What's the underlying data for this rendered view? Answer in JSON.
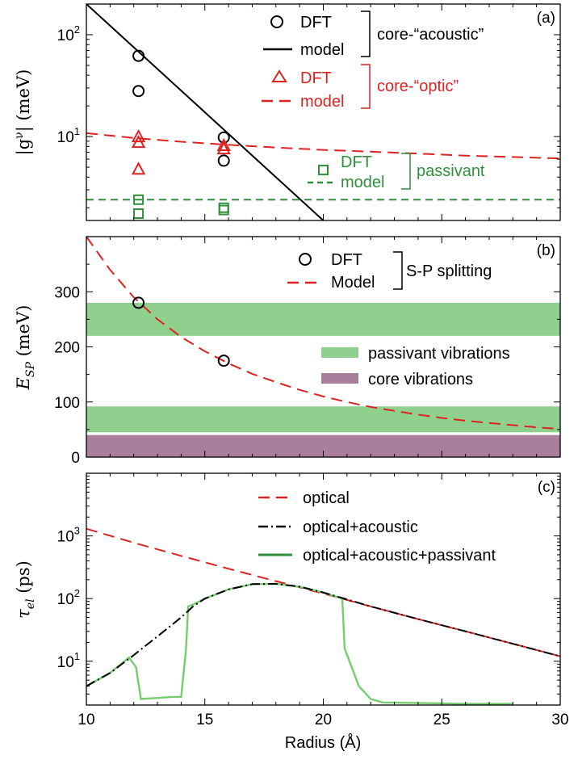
{
  "colors": {
    "black": "#000000",
    "red": "#dd2222",
    "green": "#2f8f3a",
    "band_green": "#8fd08f",
    "band_purple": "#a97f9c",
    "light_green": "#77cc6f"
  },
  "chart_data": [
    {
      "id": "a",
      "type": "scatter",
      "panel_label": "(a)",
      "ylabel_base": "|g",
      "ylabel_sup": "ν",
      "ylabel_end": "| (meV)",
      "yscale": "log",
      "xlim": [
        10,
        30
      ],
      "ylim": [
        1.5,
        200
      ],
      "yticks": [
        {
          "v": 10,
          "base": "10",
          "exp": "1"
        },
        {
          "v": 100,
          "base": "10",
          "exp": "2"
        }
      ],
      "series": [
        {
          "key": "acoustic_dft",
          "name": "DFT",
          "marker": "circle",
          "color": "#000000",
          "x": [
            12.2,
            12.2,
            15.8,
            15.8
          ],
          "y": [
            62,
            28,
            9.8,
            5.8
          ]
        },
        {
          "key": "acoustic_model",
          "name": "model",
          "style": "solid",
          "color": "#000000",
          "x": [
            10,
            20
          ],
          "y": [
            200,
            1.5
          ]
        },
        {
          "key": "optic_dft",
          "name": "DFT",
          "marker": "triangle",
          "color": "#dd2222",
          "x": [
            12.2,
            12.2,
            12.2,
            15.8,
            15.8
          ],
          "y": [
            10,
            8.8,
            4.8,
            8.2,
            7.6
          ]
        },
        {
          "key": "optic_model",
          "name": "model",
          "style": "dashed",
          "color": "#dd2222",
          "x": [
            10,
            12,
            14,
            16,
            18,
            20,
            22,
            24,
            26,
            28,
            30
          ],
          "y": [
            10.8,
            9.7,
            8.9,
            8.3,
            7.8,
            7.4,
            7.1,
            6.8,
            6.5,
            6.3,
            6.1
          ]
        },
        {
          "key": "passivant_dft",
          "name": "DFT",
          "marker": "square",
          "color": "#2f8f3a",
          "x": [
            12.2,
            12.2,
            15.8,
            15.8,
            20.0
          ],
          "y": [
            2.4,
            1.75,
            2.0,
            1.9,
            4.7
          ]
        },
        {
          "key": "passivant_model",
          "name": "model",
          "style": "dashed",
          "color": "#2f8f3a",
          "x": [
            10,
            30
          ],
          "y": [
            2.4,
            2.4
          ]
        }
      ],
      "group_labels": {
        "acoustic": "core-“acoustic”",
        "optic": "core-“optic”",
        "passivant": "passivant"
      }
    },
    {
      "id": "b",
      "type": "scatter",
      "panel_label": "(b)",
      "ylabel_base": "E",
      "ylabel_sub": "SP",
      "ylabel_end": " (meV)",
      "yscale": "linear",
      "xlim": [
        10,
        30
      ],
      "ylim": [
        0,
        400
      ],
      "yticks": [
        0,
        100,
        200,
        300
      ],
      "bands": [
        {
          "key": "passivant_band_high",
          "y0": 220,
          "y1": 280,
          "color": "#8fd08f"
        },
        {
          "key": "passivant_band_low",
          "y0": 45,
          "y1": 92,
          "color": "#8fd08f"
        },
        {
          "key": "core_band",
          "y0": 0,
          "y1": 40,
          "color": "#a97f9c"
        }
      ],
      "series": [
        {
          "key": "sp_dft",
          "name": "DFT",
          "marker": "circle",
          "color": "#000000",
          "x": [
            12.2,
            15.8
          ],
          "y": [
            280,
            175
          ]
        },
        {
          "key": "sp_model",
          "name": "Model",
          "style": "dashed",
          "color": "#dd2222",
          "x": [
            10,
            11,
            12,
            13,
            14,
            15,
            16,
            17,
            18,
            19,
            20,
            21,
            22,
            23,
            24,
            25,
            26,
            27,
            28,
            29,
            30
          ],
          "y": [
            400,
            340,
            290,
            250,
            218,
            192,
            170,
            151,
            136,
            122,
            110,
            100,
            91,
            84,
            77,
            71,
            66,
            62,
            58,
            54,
            51
          ]
        }
      ],
      "legend_group": "S-P splitting",
      "band_legend": [
        {
          "name": "passivant vibrations",
          "color": "#8fd08f"
        },
        {
          "name": "core vibrations",
          "color": "#a97f9c"
        }
      ]
    },
    {
      "id": "c",
      "type": "line",
      "panel_label": "(c)",
      "ylabel_base": "τ",
      "ylabel_sub": "el",
      "ylabel_end": " (ps)",
      "yscale": "log",
      "xlim": [
        10,
        30
      ],
      "ylim": [
        2,
        10000
      ],
      "yticks": [
        {
          "v": 10,
          "base": "10",
          "exp": "1"
        },
        {
          "v": 100,
          "base": "10",
          "exp": "2"
        },
        {
          "v": 1000,
          "base": "10",
          "exp": "3"
        }
      ],
      "xlabel": "Radius (Å)",
      "xticks": [
        10,
        15,
        20,
        25,
        30
      ],
      "series": [
        {
          "key": "optical",
          "name": "optical",
          "style": "dashed",
          "color": "#dd2222",
          "x": [
            10,
            12,
            14,
            16,
            18,
            20,
            21,
            22,
            24,
            26,
            28,
            30
          ],
          "y": [
            1300,
            780,
            480,
            300,
            190,
            120,
            95,
            75,
            47,
            30,
            19,
            12
          ]
        },
        {
          "key": "optical_acoustic",
          "name": "optical+acoustic",
          "style": "dashdot",
          "color": "#000000",
          "x": [
            10,
            11,
            12,
            13,
            14,
            14.5,
            15,
            16,
            17,
            18,
            19,
            20,
            21,
            22,
            24,
            26,
            28,
            30
          ],
          "y": [
            4,
            6.5,
            12.5,
            25,
            50,
            75,
            100,
            140,
            170,
            172,
            155,
            125,
            97,
            75,
            47,
            30,
            19,
            12
          ]
        },
        {
          "key": "optical_acoustic_passivant",
          "name": "optical+acoustic+passivant",
          "style": "solid",
          "color": "#77cc6f",
          "x": [
            10,
            11,
            11.8,
            12.1,
            12.3,
            13,
            13.6,
            14.0,
            14.2,
            14.3,
            14.5,
            15,
            16,
            17,
            18,
            19,
            20,
            20.8,
            20.9,
            21.5,
            22,
            22.5,
            26,
            28
          ],
          "y": [
            4,
            6.5,
            11.5,
            8,
            2.5,
            2.6,
            2.7,
            2.7,
            15,
            75,
            80,
            100,
            140,
            170,
            172,
            155,
            125,
            100,
            16,
            4,
            2.5,
            2.2,
            2.1,
            2.1
          ]
        }
      ]
    }
  ]
}
